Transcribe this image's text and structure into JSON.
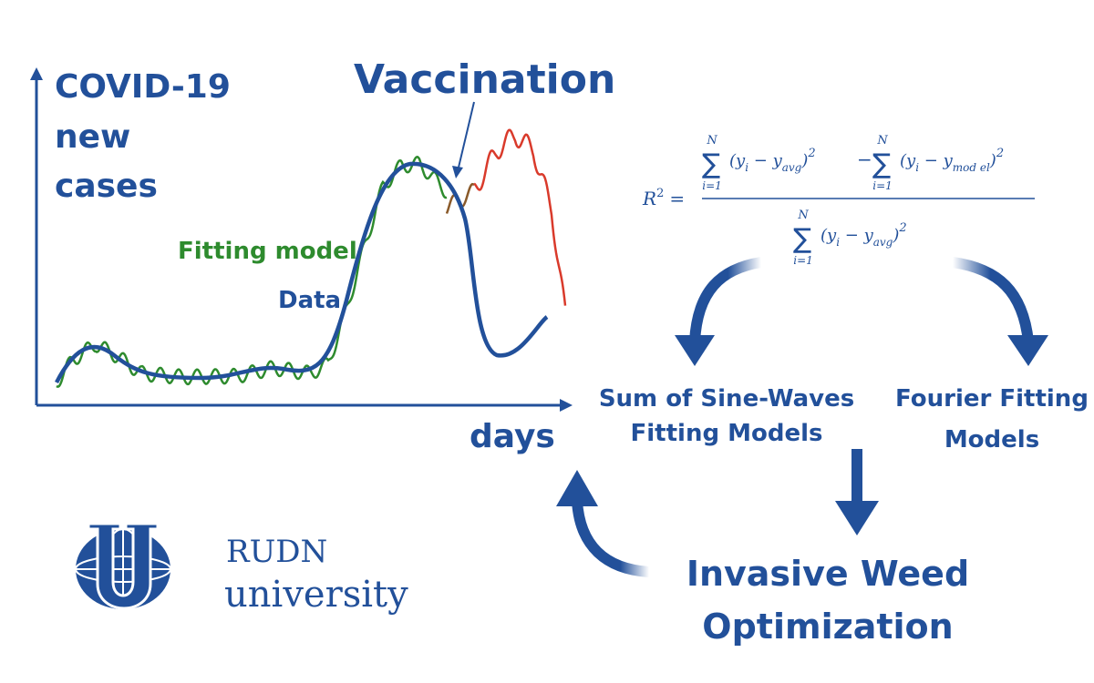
{
  "chart": {
    "y_label": [
      "COVID-19",
      "new",
      "cases"
    ],
    "x_label": "days",
    "annotation": "Vaccination",
    "legend": {
      "fit": "Fitting model",
      "data": "Data"
    }
  },
  "formula": {
    "lhs": "R",
    "lhs_sup": "2",
    "equals": "=",
    "operator": "−",
    "terms": [
      {
        "upper": "N",
        "sigma": "∑",
        "lower": "i=1",
        "open": "(y",
        "sub1": "i",
        "mid": " − y",
        "sub2": "avg",
        "close": ")",
        "sup": "2"
      },
      {
        "upper": "N",
        "sigma": "∑",
        "lower": "i=1",
        "open": "(y",
        "sub1": "i",
        "mid": " − y",
        "sub2": "mod el",
        "close": ")",
        "sup": "2"
      },
      {
        "upper": "N",
        "sigma": "∑",
        "lower": "i=1",
        "open": "(y",
        "sub1": "i",
        "mid": " − y",
        "sub2": "avg",
        "close": ")",
        "sup": "2"
      }
    ]
  },
  "boxes": {
    "sine": [
      "Sum of Sine-Waves",
      "Fitting Models"
    ],
    "fourier": [
      "Fourier Fitting",
      "Models"
    ],
    "iwo": [
      "Invasive Weed",
      "Optimization"
    ]
  },
  "logo": {
    "name": "RUDN",
    "sub": "university"
  }
}
